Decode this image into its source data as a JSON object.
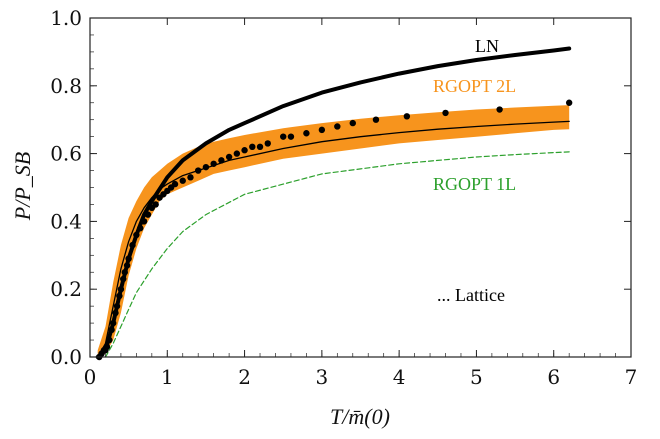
{
  "chart_data": {
    "type": "line",
    "title": "",
    "xlabel": "T/m̄(0)",
    "ylabel": "P/P_SB",
    "xlim": [
      0,
      7
    ],
    "ylim": [
      0,
      1.0
    ],
    "x_ticks": [
      "0",
      "1",
      "2",
      "3",
      "4",
      "5",
      "6",
      "7"
    ],
    "y_ticks": [
      "0.0",
      "0.2",
      "0.4",
      "0.6",
      "0.8",
      "1.0"
    ],
    "grid": false,
    "legend": "annotations",
    "annotations": [
      {
        "text": "LN",
        "color": "#000000"
      },
      {
        "text": "RGOPT 2L",
        "color": "#f7941d"
      },
      {
        "text": "RGOPT 1L",
        "color": "#2ca02c"
      },
      {
        "text": "... Lattice",
        "color": "#000000"
      }
    ],
    "series": [
      {
        "name": "LN",
        "style": "thick-solid",
        "color": "#000000",
        "x": [
          0.1,
          0.2,
          0.3,
          0.4,
          0.5,
          0.6,
          0.7,
          0.8,
          1.0,
          1.2,
          1.5,
          1.8,
          2.0,
          2.5,
          3.0,
          3.5,
          4.0,
          4.5,
          5.0,
          5.5,
          6.0,
          6.2
        ],
        "y": [
          0.0,
          0.02,
          0.1,
          0.2,
          0.29,
          0.36,
          0.42,
          0.46,
          0.53,
          0.58,
          0.63,
          0.67,
          0.69,
          0.74,
          0.78,
          0.81,
          0.836,
          0.858,
          0.876,
          0.891,
          0.904,
          0.91
        ]
      },
      {
        "name": "RGOPT 2L",
        "style": "thin-solid-with-band",
        "color": "#000000",
        "band_color": "#f7941d",
        "x": [
          0.1,
          0.2,
          0.3,
          0.4,
          0.5,
          0.6,
          0.7,
          0.8,
          0.9,
          1.0,
          1.2,
          1.4,
          1.6,
          1.8,
          2.0,
          2.5,
          3.0,
          3.5,
          4.0,
          4.5,
          5.0,
          5.5,
          6.0,
          6.2
        ],
        "y": [
          0.0,
          0.04,
          0.15,
          0.26,
          0.34,
          0.4,
          0.44,
          0.47,
          0.495,
          0.51,
          0.535,
          0.55,
          0.565,
          0.58,
          0.59,
          0.615,
          0.635,
          0.65,
          0.662,
          0.672,
          0.68,
          0.687,
          0.693,
          0.695
        ],
        "y_low": [
          0.0,
          0.01,
          0.05,
          0.13,
          0.24,
          0.32,
          0.38,
          0.42,
          0.46,
          0.48,
          0.5,
          0.52,
          0.54,
          0.55,
          0.56,
          0.585,
          0.6,
          0.615,
          0.63,
          0.64,
          0.65,
          0.66,
          0.67,
          0.672
        ],
        "y_high": [
          0.02,
          0.09,
          0.22,
          0.33,
          0.41,
          0.46,
          0.5,
          0.53,
          0.55,
          0.57,
          0.6,
          0.62,
          0.635,
          0.645,
          0.655,
          0.675,
          0.69,
          0.703,
          0.713,
          0.722,
          0.73,
          0.736,
          0.741,
          0.743
        ]
      },
      {
        "name": "RGOPT 1L",
        "style": "dashed",
        "color": "#2ca02c",
        "x": [
          0.2,
          0.3,
          0.4,
          0.5,
          0.6,
          0.8,
          1.0,
          1.2,
          1.5,
          2.0,
          2.5,
          3.0,
          3.5,
          4.0,
          4.5,
          5.0,
          5.5,
          6.0,
          6.2
        ],
        "y": [
          0.0,
          0.04,
          0.09,
          0.14,
          0.19,
          0.26,
          0.32,
          0.37,
          0.42,
          0.48,
          0.51,
          0.54,
          0.555,
          0.57,
          0.58,
          0.59,
          0.597,
          0.603,
          0.605
        ]
      },
      {
        "name": "Lattice",
        "style": "points",
        "color": "#000000",
        "x": [
          0.12,
          0.15,
          0.18,
          0.2,
          0.22,
          0.25,
          0.28,
          0.3,
          0.33,
          0.35,
          0.38,
          0.4,
          0.43,
          0.45,
          0.48,
          0.5,
          0.55,
          0.6,
          0.65,
          0.7,
          0.75,
          0.8,
          0.85,
          0.9,
          0.95,
          1.0,
          1.05,
          1.1,
          1.2,
          1.3,
          1.4,
          1.5,
          1.6,
          1.7,
          1.8,
          1.9,
          2.0,
          2.1,
          2.2,
          2.3,
          2.5,
          2.6,
          2.8,
          3.0,
          3.2,
          3.4,
          3.7,
          4.1,
          4.6,
          5.3,
          6.2
        ],
        "y": [
          0.0,
          0.01,
          0.02,
          0.02,
          0.03,
          0.05,
          0.08,
          0.1,
          0.13,
          0.15,
          0.18,
          0.2,
          0.23,
          0.25,
          0.27,
          0.29,
          0.33,
          0.36,
          0.38,
          0.4,
          0.42,
          0.44,
          0.45,
          0.47,
          0.48,
          0.49,
          0.5,
          0.51,
          0.52,
          0.53,
          0.55,
          0.56,
          0.57,
          0.58,
          0.59,
          0.6,
          0.61,
          0.62,
          0.62,
          0.63,
          0.65,
          0.65,
          0.66,
          0.67,
          0.68,
          0.69,
          0.7,
          0.71,
          0.72,
          0.73,
          0.75
        ]
      }
    ]
  }
}
